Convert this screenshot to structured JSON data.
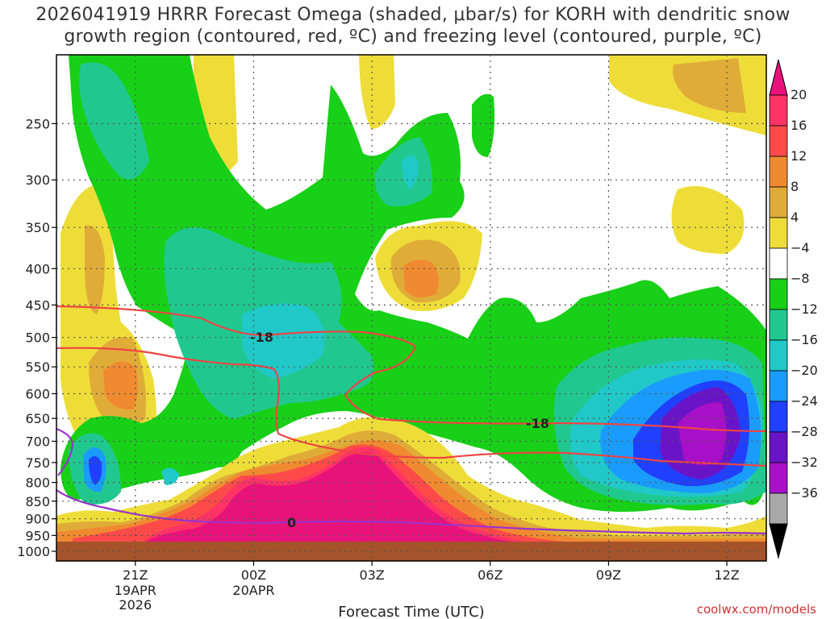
{
  "title_line1": "2026041919 HRRR Forecast Omega (shaded, μbar/s) for KORH with dendritic snow",
  "title_line2": "growth region (contoured, red, ºC) and freezing level (contoured, purple, ºC)",
  "credit": "coolwx.com/models",
  "chart_data": {
    "type": "heatmap",
    "title": "2026041919 HRRR Forecast Omega (shaded, μbar/s) for KORH with dendritic snow growth region (contoured, red, ºC) and freezing level (contoured, purple, ºC)",
    "xlabel": "Forecast Time (UTC)",
    "ylabel": "",
    "x_ticks": [
      {
        "hours": 2,
        "label": "21Z",
        "sub": [
          "19APR",
          "2026"
        ]
      },
      {
        "hours": 5,
        "label": "00Z",
        "sub": [
          "20APR"
        ]
      },
      {
        "hours": 8,
        "label": "03Z",
        "sub": []
      },
      {
        "hours": 11,
        "label": "06Z",
        "sub": []
      },
      {
        "hours": 14,
        "label": "09Z",
        "sub": []
      },
      {
        "hours": 17,
        "label": "12Z",
        "sub": []
      }
    ],
    "x_range_hours": [
      0,
      18
    ],
    "y_ticks": [
      250,
      300,
      350,
      400,
      450,
      500,
      550,
      600,
      650,
      700,
      750,
      800,
      850,
      900,
      950,
      1000
    ],
    "y_range_hpa": [
      200,
      1000
    ],
    "y_scale": "pressure",
    "grid": true,
    "colorbar": {
      "labels": [
        "20",
        "16",
        "12",
        "8",
        "4",
        "−4",
        "−8",
        "−12",
        "−16",
        "−20",
        "−24",
        "−28",
        "−32",
        "−36"
      ],
      "colors": [
        "#ff3366",
        "#ff4a4a",
        "#f08a30",
        "#e0ac38",
        "#eedd38",
        "#ffffff",
        "#18d018",
        "#20c890",
        "#20c8c8",
        "#1a9cff",
        "#2040ff",
        "#6a14c8",
        "#a810c8",
        "#a8a8a8"
      ],
      "top_arrow": "#e8137a",
      "bottom_arrow": "#000000"
    },
    "contours": [
      {
        "name": "dendritic snow growth region",
        "color": "#ee4444",
        "label": "-18"
      },
      {
        "name": "freezing level",
        "color": "#9933cc",
        "label": "0"
      }
    ]
  }
}
